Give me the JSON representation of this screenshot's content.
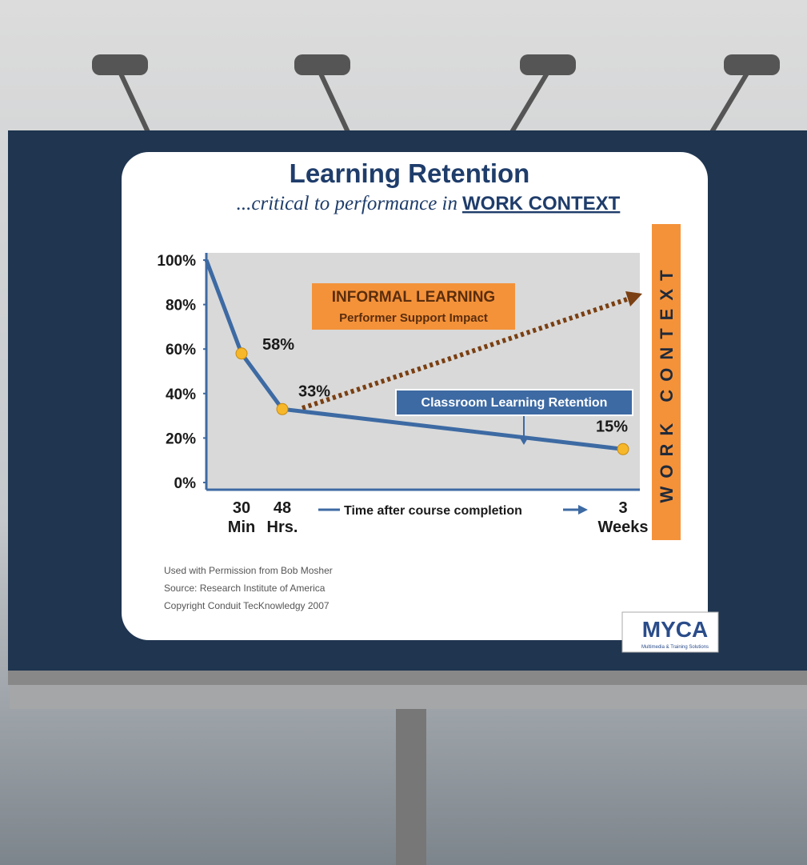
{
  "chart_data": {
    "type": "line",
    "title": "Learning Retention",
    "subtitle": "...critical to performance in",
    "subtitle_emphasis": "WORK CONTEXT",
    "categories": [
      null,
      "30 Min",
      "48 Hrs.",
      "3 Weeks"
    ],
    "values": [
      100,
      58,
      33,
      15
    ],
    "value_labels": [
      null,
      "58%",
      "33%",
      "15%"
    ],
    "color": "#3d6aa3",
    "marker_color": "#f6b72a",
    "ylim": [
      0,
      100
    ],
    "yticks": [
      {
        "value": 0,
        "label": "0%"
      },
      {
        "value": 20,
        "label": "20%"
      },
      {
        "value": 40,
        "label": "40%"
      },
      {
        "value": 60,
        "label": "60%"
      },
      {
        "value": 80,
        "label": "80%"
      },
      {
        "value": 100,
        "label": "100%"
      }
    ],
    "x_label": "Time after course completion",
    "annotations": {
      "informal_title": "INFORMAL LEARNING",
      "informal_sub": "Performer Support Impact",
      "classroom": "Classroom Learning Retention",
      "side_banner": "WORK CONTEXT"
    },
    "footnotes": [
      "Used with Permission from Bob Mosher",
      "Source: Research Institute of America",
      "Copyright Conduit TecKnowledgy 2007"
    ],
    "logo": {
      "name": "MYCA",
      "tagline": "Multimedia & Training Solutions"
    }
  }
}
